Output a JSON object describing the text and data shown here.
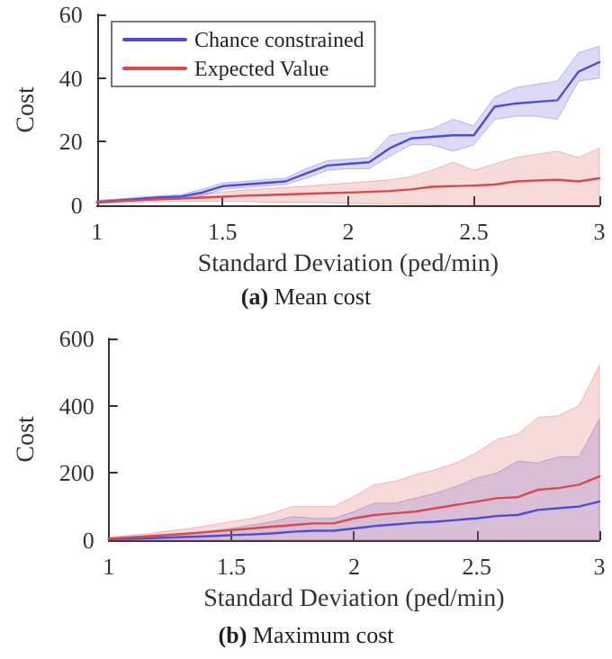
{
  "chart_data": [
    {
      "type": "line",
      "title": "(a) Mean cost",
      "xlabel": "Standard Deviation (ped/min)",
      "ylabel": "Cost",
      "x": [
        1,
        1.083,
        1.167,
        1.25,
        1.333,
        1.417,
        1.5,
        1.583,
        1.667,
        1.75,
        1.833,
        1.917,
        2,
        2.083,
        2.167,
        2.25,
        2.333,
        2.417,
        2.5,
        2.583,
        2.667,
        2.75,
        2.833,
        2.917,
        3
      ],
      "series": [
        {
          "name": "Chance constrained",
          "color": "#4b4bdc",
          "values": [
            1,
            1.5,
            2,
            2.5,
            2.7,
            4,
            6,
            6.5,
            7,
            7.5,
            10,
            12.5,
            13,
            13.5,
            18,
            21,
            21.5,
            22,
            22,
            31,
            32,
            32.5,
            33,
            42,
            45
          ],
          "lower": [
            0.5,
            1,
            1.5,
            2,
            2.2,
            3,
            5,
            5.5,
            6,
            6.5,
            8.5,
            11,
            11.5,
            11.5,
            15.5,
            19,
            19,
            17,
            19,
            27,
            28,
            28,
            27,
            39,
            40
          ],
          "upper": [
            1.5,
            2,
            2.5,
            3,
            3.3,
            5,
            7,
            7.5,
            8,
            8.5,
            11.5,
            14,
            14.5,
            15,
            22,
            23,
            24,
            27,
            25,
            34,
            37,
            38,
            39,
            48,
            50
          ]
        },
        {
          "name": "Expected Value",
          "color": "#d94a4a",
          "values": [
            1,
            1.3,
            1.6,
            1.9,
            2.1,
            2.4,
            2.7,
            3,
            3.2,
            3.4,
            3.6,
            3.8,
            4,
            4.2,
            4.5,
            5,
            5.8,
            6,
            6.2,
            6.5,
            7.5,
            7.8,
            8,
            7.5,
            8.5
          ],
          "lower": [
            0.5,
            0.8,
            1,
            1.2,
            1.2,
            1.2,
            1.2,
            1.2,
            1,
            1,
            1,
            0.8,
            0.6,
            0.5,
            0.4,
            0.3,
            0.2,
            0,
            0,
            0,
            0,
            0,
            0,
            0,
            0
          ],
          "upper": [
            1.5,
            1.8,
            2.2,
            2.6,
            3,
            3.6,
            4.2,
            4.8,
            5.2,
            5.6,
            6,
            6.5,
            7,
            7.5,
            8,
            9,
            11,
            13.5,
            11,
            13,
            15,
            16,
            17,
            15,
            18
          ]
        }
      ],
      "xlim": [
        1,
        3
      ],
      "xticks": [
        1,
        1.5,
        2,
        2.5,
        3
      ],
      "ylim": [
        0,
        60
      ],
      "yticks": [
        0,
        20,
        40,
        60
      ],
      "legend": "top left",
      "grid": false,
      "marker": "none",
      "line_style": "solid"
    },
    {
      "type": "line",
      "title": "(b) Maximum cost",
      "xlabel": "Standard Deviation (ped/min)",
      "ylabel": "Cost",
      "x": [
        1,
        1.083,
        1.167,
        1.25,
        1.333,
        1.417,
        1.5,
        1.583,
        1.667,
        1.75,
        1.833,
        1.917,
        2,
        2.083,
        2.167,
        2.25,
        2.333,
        2.417,
        2.5,
        2.583,
        2.667,
        2.75,
        2.833,
        2.917,
        3
      ],
      "series": [
        {
          "color": "#4b4bdc",
          "values": [
            3,
            4,
            6,
            8,
            10,
            12,
            15,
            17,
            20,
            25,
            28,
            28,
            35,
            42,
            47,
            52,
            55,
            60,
            65,
            72,
            75,
            90,
            95,
            100,
            115
          ],
          "lower": [
            0,
            0,
            0,
            0,
            0,
            0,
            0,
            0,
            0,
            0,
            0,
            0,
            0,
            0,
            0,
            0,
            0,
            0,
            0,
            0,
            0,
            0,
            0,
            0,
            0
          ],
          "upper": [
            5,
            8,
            12,
            16,
            20,
            28,
            35,
            45,
            55,
            70,
            65,
            65,
            85,
            110,
            110,
            125,
            140,
            160,
            185,
            200,
            235,
            230,
            248,
            248,
            360
          ]
        },
        {
          "color": "#d94a4a",
          "values": [
            5,
            8,
            12,
            16,
            20,
            25,
            30,
            35,
            40,
            45,
            50,
            50,
            65,
            75,
            80,
            85,
            95,
            105,
            115,
            125,
            128,
            150,
            155,
            165,
            190
          ],
          "lower": [
            0,
            0,
            0,
            0,
            0,
            0,
            0,
            0,
            0,
            0,
            0,
            0,
            0,
            0,
            0,
            0,
            0,
            0,
            0,
            0,
            0,
            0,
            0,
            0,
            0
          ],
          "upper": [
            8,
            14,
            20,
            28,
            35,
            45,
            55,
            65,
            80,
            100,
            100,
            100,
            130,
            165,
            175,
            195,
            210,
            230,
            260,
            300,
            315,
            365,
            370,
            400,
            520
          ]
        }
      ],
      "xlim": [
        1,
        3
      ],
      "xticks": [
        1,
        1.5,
        2,
        2.5,
        3
      ],
      "ylim": [
        0,
        600
      ],
      "yticks": [
        0,
        200,
        400,
        600
      ],
      "grid": false,
      "marker": "none",
      "line_style": "solid"
    }
  ]
}
